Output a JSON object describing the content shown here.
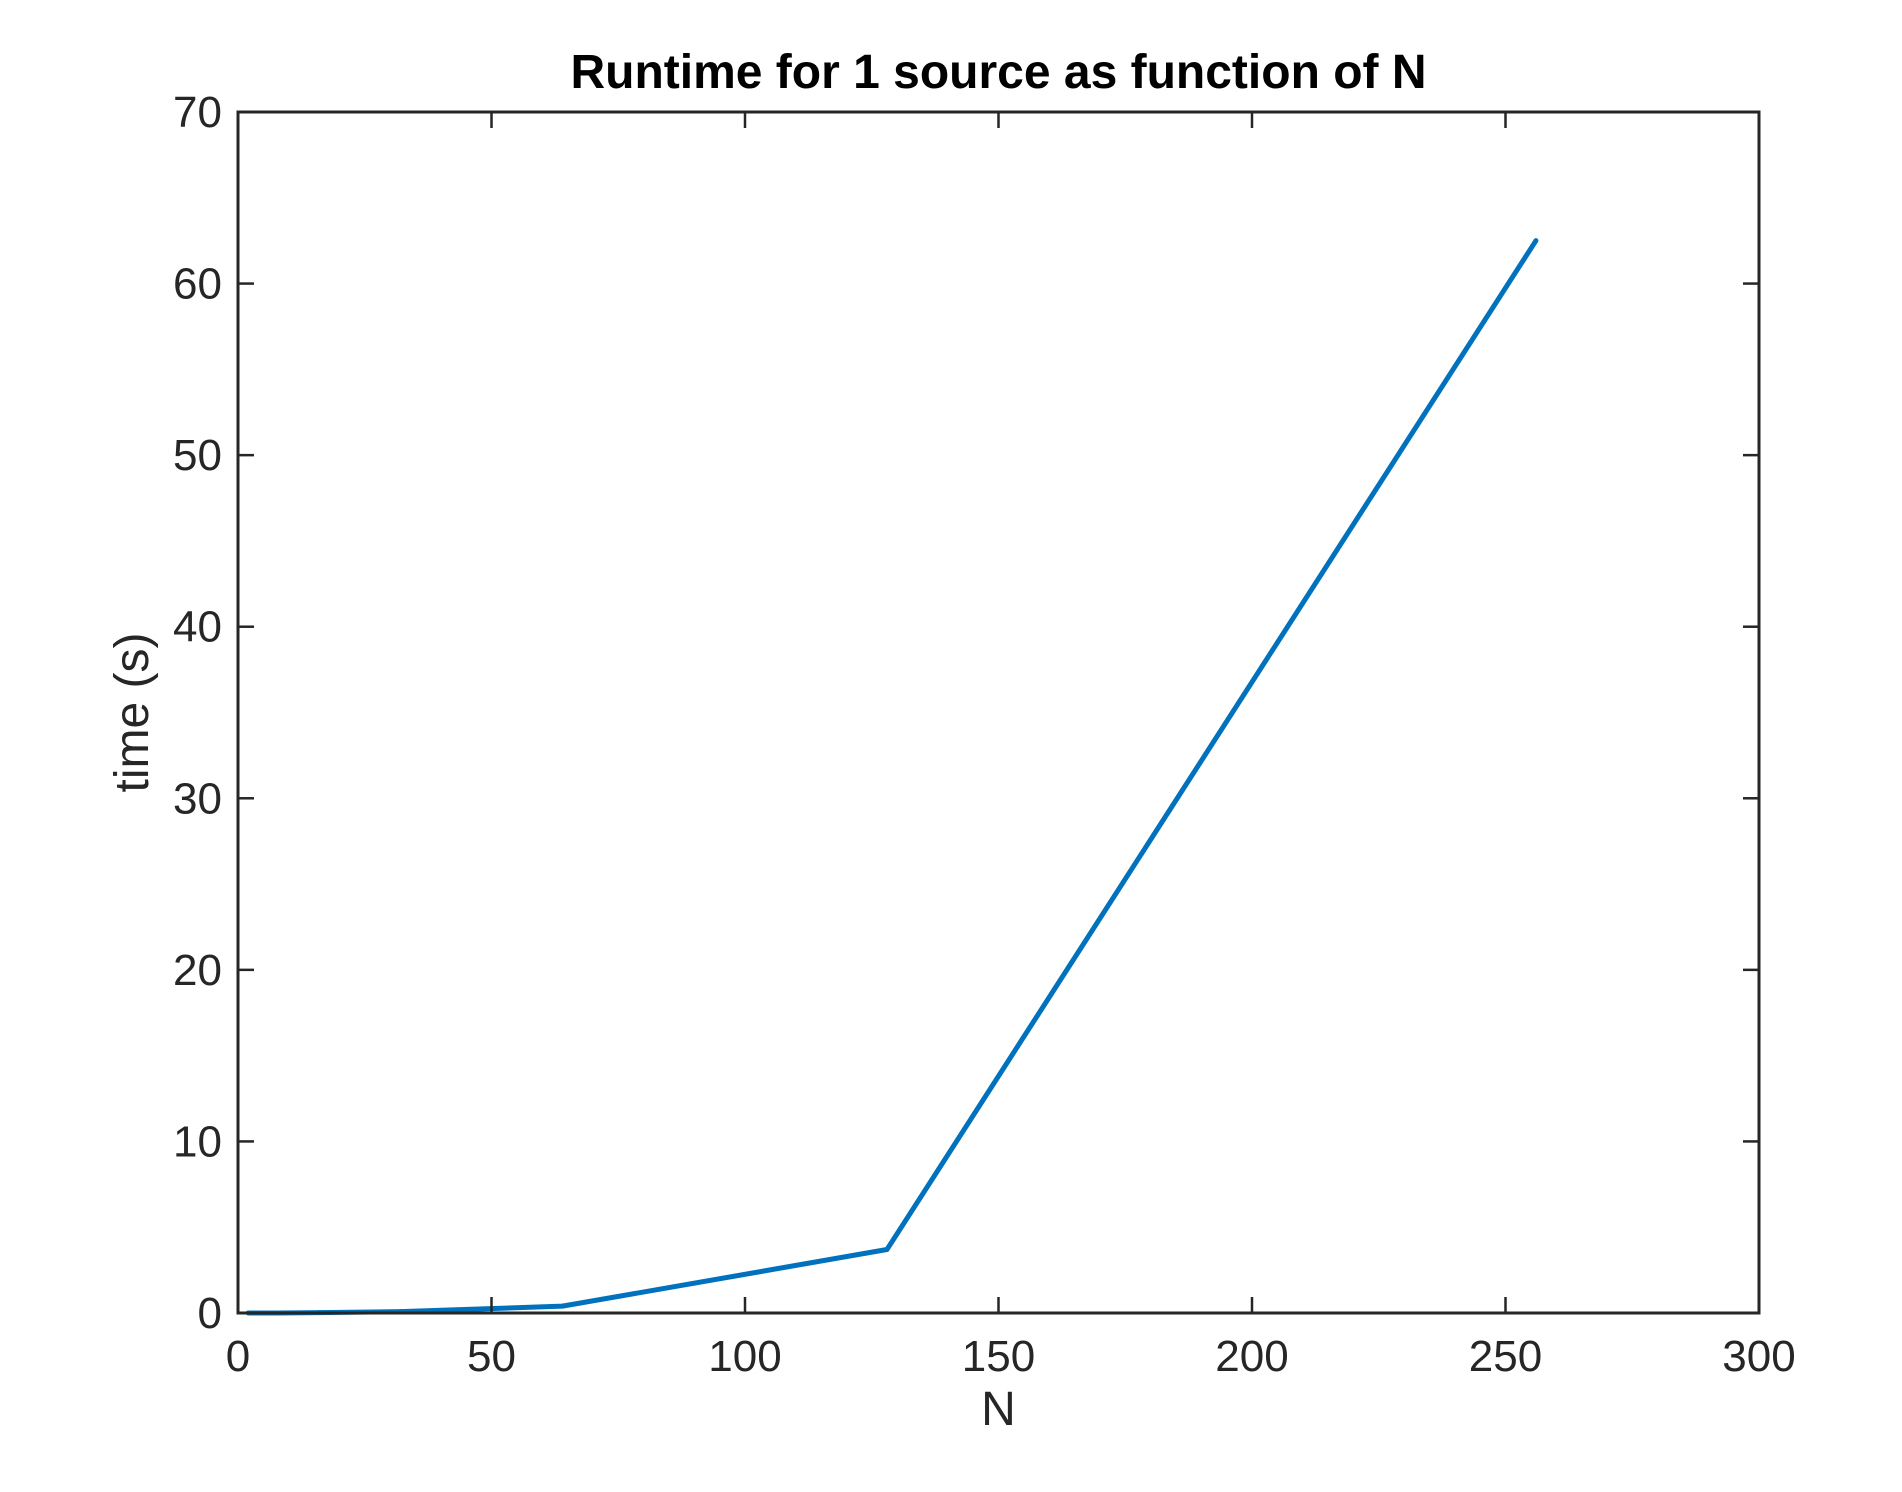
{
  "chart_data": {
    "type": "line",
    "title": "Runtime for 1 source as function of N",
    "xlabel": "N",
    "ylabel": "time (s)",
    "xlim": [
      0,
      300
    ],
    "ylim": [
      0,
      70
    ],
    "x_ticks": [
      0,
      50,
      100,
      150,
      200,
      250,
      300
    ],
    "y_ticks": [
      0,
      10,
      20,
      30,
      40,
      50,
      60,
      70
    ],
    "x_tick_labels": [
      "0",
      "50",
      "100",
      "150",
      "200",
      "250",
      "300"
    ],
    "y_tick_labels": [
      "0",
      "10",
      "20",
      "30",
      "40",
      "50",
      "60",
      "70"
    ],
    "grid": false,
    "box": true,
    "series": [
      {
        "color": "#0072BD",
        "x": [
          2,
          4,
          8,
          16,
          32,
          64,
          128,
          256
        ],
        "y": [
          0.0,
          0.0,
          0.0,
          0.02,
          0.08,
          0.4,
          3.7,
          62.5
        ]
      }
    ]
  }
}
